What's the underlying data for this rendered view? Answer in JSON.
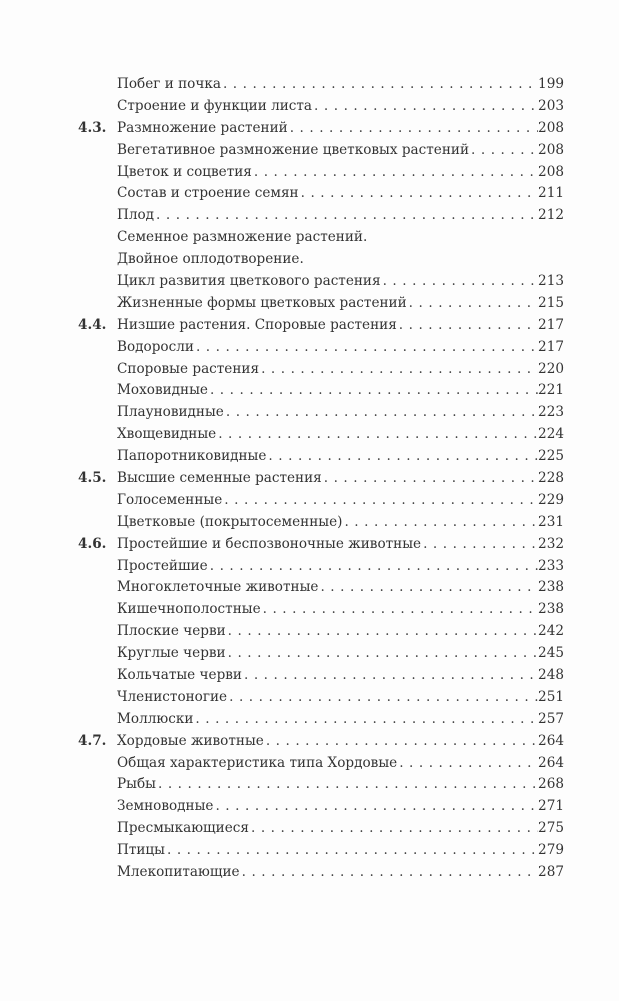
{
  "entries": [
    {
      "num": "",
      "title": "Побег и почка",
      "page": "199"
    },
    {
      "num": "",
      "title": "Строение и функции листа",
      "page": "203"
    },
    {
      "num": "4.3.",
      "title": "Размножение растений",
      "page": "208"
    },
    {
      "num": "",
      "title": "Вегетативное размножение цветковых растений",
      "page": "208"
    },
    {
      "num": "",
      "title": "Цветок и соцветия",
      "page": "208"
    },
    {
      "num": "",
      "title": "Состав и строение семян",
      "page": "211"
    },
    {
      "num": "",
      "title": "Плод",
      "page": "212"
    },
    {
      "num": "",
      "title": "Семенное размножение растений.",
      "page": ""
    },
    {
      "num": "",
      "title": "Двойное оплодотворение.",
      "page": ""
    },
    {
      "num": "",
      "title": "Цикл развития цветкового растения",
      "page": "213"
    },
    {
      "num": "",
      "title": "Жизненные формы цветковых растений",
      "page": "215"
    },
    {
      "num": "4.4.",
      "title": "Низшие растения. Споровые растения",
      "page": "217"
    },
    {
      "num": "",
      "title": "Водоросли",
      "page": "217"
    },
    {
      "num": "",
      "title": "Споровые растения",
      "page": "220"
    },
    {
      "num": "",
      "title": "Моховидные",
      "page": "221"
    },
    {
      "num": "",
      "title": "Плауновидные",
      "page": "223"
    },
    {
      "num": "",
      "title": "Хвощевидные",
      "page": "224"
    },
    {
      "num": "",
      "title": "Папоротниковидные",
      "page": "225"
    },
    {
      "num": "4.5.",
      "title": "Высшие семенные растения",
      "page": "228"
    },
    {
      "num": "",
      "title": "Голосеменные",
      "page": "229"
    },
    {
      "num": "",
      "title": "Цветковые (покрытосеменные)",
      "page": "231"
    },
    {
      "num": "4.6.",
      "title": "Простейшие и беспозвоночные животные",
      "page": "232"
    },
    {
      "num": "",
      "title": "Простейшие",
      "page": "233"
    },
    {
      "num": "",
      "title": "Многоклеточные животные",
      "page": "238"
    },
    {
      "num": "",
      "title": "Кишечнополостные",
      "page": "238"
    },
    {
      "num": "",
      "title": "Плоские черви",
      "page": "242"
    },
    {
      "num": "",
      "title": "Круглые черви",
      "page": "245"
    },
    {
      "num": "",
      "title": "Кольчатые черви",
      "page": "248"
    },
    {
      "num": "",
      "title": "Членистоногие",
      "page": "251"
    },
    {
      "num": "",
      "title": "Моллюски",
      "page": "257"
    },
    {
      "num": "4.7.",
      "title": "Хордовые животные",
      "page": "264"
    },
    {
      "num": "",
      "title": "Общая характеристика типа Хордовые",
      "page": "264"
    },
    {
      "num": "",
      "title": "Рыбы",
      "page": "268"
    },
    {
      "num": "",
      "title": "Земноводные",
      "page": "271"
    },
    {
      "num": "",
      "title": "Пресмыкающиеся",
      "page": "275"
    },
    {
      "num": "",
      "title": "Птицы",
      "page": "279"
    },
    {
      "num": "",
      "title": "Млекопитающие",
      "page": "287"
    }
  ]
}
